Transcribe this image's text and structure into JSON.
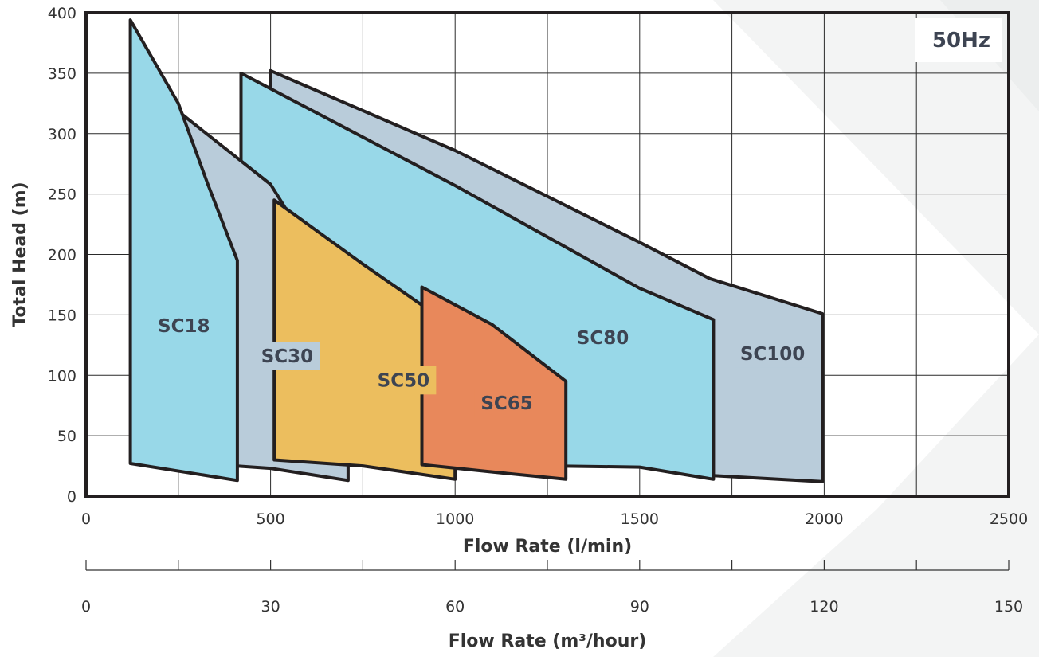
{
  "chart_data": {
    "type": "area",
    "frequency_label": "50Hz",
    "xlabel": "Flow Rate (l/min)",
    "ylabel": "Total Head (m)",
    "xlim": [
      0,
      2500
    ],
    "ylim": [
      0,
      400
    ],
    "x_ticks": [
      0,
      500,
      1000,
      1500,
      2000,
      2500
    ],
    "y_ticks": [
      0,
      50,
      100,
      150,
      200,
      250,
      300,
      350,
      400
    ],
    "grid": true,
    "secondary_axis": {
      "label": "Flow Rate (m³/hour)",
      "lim": [
        0,
        150
      ],
      "ticks": [
        0,
        30,
        60,
        90,
        120,
        150
      ],
      "minor_ticks": [
        15,
        45,
        75,
        105,
        135
      ]
    },
    "colors": {
      "cyan": "#98d8e8",
      "grey": "#b9ccda",
      "yellow": "#ecbe5e",
      "orange": "#e8885b",
      "outline": "#231f20",
      "text": "#3d4452",
      "watermark": "#f3f4f4"
    },
    "series": [
      {
        "name": "SC100",
        "color": "grey",
        "label_pos": [
          1860,
          118
        ],
        "polygon": [
          [
            500,
            352
          ],
          [
            1000,
            286
          ],
          [
            1500,
            210
          ],
          [
            1690,
            180
          ],
          [
            1995,
            151
          ],
          [
            1995,
            12
          ],
          [
            1700,
            17
          ],
          [
            1500,
            27
          ],
          [
            1000,
            31
          ],
          [
            500,
            32
          ]
        ]
      },
      {
        "name": "SC80",
        "color": "cyan",
        "label_pos": [
          1400,
          131
        ],
        "polygon": [
          [
            420,
            350
          ],
          [
            1000,
            257
          ],
          [
            1500,
            172
          ],
          [
            1700,
            146
          ],
          [
            1700,
            14
          ],
          [
            1500,
            24
          ],
          [
            1000,
            26
          ],
          [
            420,
            30
          ]
        ]
      },
      {
        "name": "SC30",
        "color": "grey",
        "label_pos": [
          545,
          116
        ],
        "polygon": [
          [
            260,
            316
          ],
          [
            500,
            258
          ],
          [
            710,
            155
          ],
          [
            710,
            13
          ],
          [
            500,
            23
          ],
          [
            260,
            28
          ]
        ]
      },
      {
        "name": "SC50",
        "color": "yellow",
        "label_pos": [
          860,
          96
        ],
        "polygon": [
          [
            510,
            245
          ],
          [
            750,
            192
          ],
          [
            1000,
            139
          ],
          [
            1000,
            14
          ],
          [
            750,
            25
          ],
          [
            510,
            30
          ]
        ]
      },
      {
        "name": "SC65",
        "color": "orange",
        "label_pos": [
          1140,
          77
        ],
        "polygon": [
          [
            910,
            173
          ],
          [
            1100,
            142
          ],
          [
            1300,
            95
          ],
          [
            1300,
            14
          ],
          [
            1100,
            20
          ],
          [
            910,
            26
          ]
        ]
      },
      {
        "name": "SC18",
        "color": "cyan",
        "label_pos": [
          265,
          141
        ],
        "polygon": [
          [
            120,
            394
          ],
          [
            250,
            325
          ],
          [
            330,
            258
          ],
          [
            410,
            195
          ],
          [
            410,
            13
          ],
          [
            120,
            27
          ]
        ]
      }
    ]
  }
}
